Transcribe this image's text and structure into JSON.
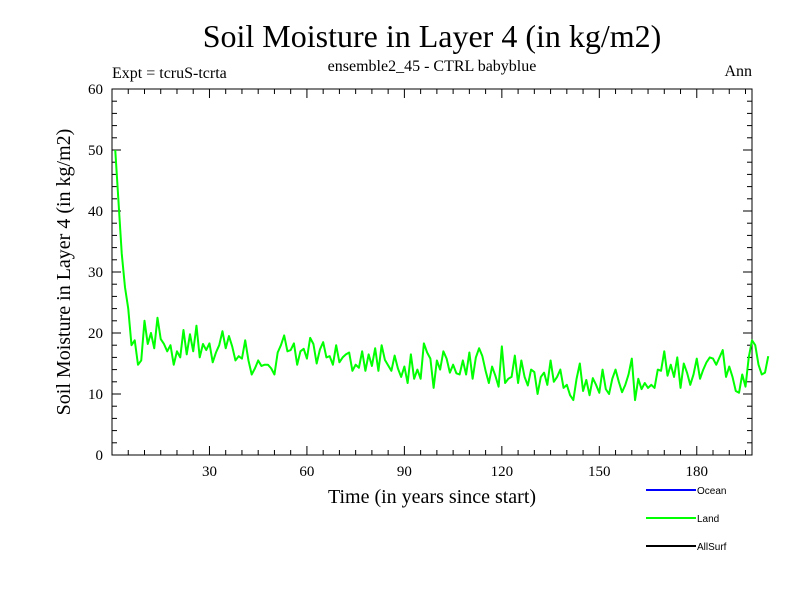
{
  "chart_data": {
    "type": "line",
    "title": "Soil Moisture in Layer 4 (in kg/m2)",
    "subtitle": "ensemble2_45 - CTRL babyblue",
    "left_note": "Expt = tcruS-tcrta",
    "right_note": "Ann",
    "xlabel": "Time (in years since start)",
    "ylabel": "Soil Moisture in Layer 4 (in kg/m2)",
    "xlim": [
      0,
      197
    ],
    "ylim": [
      0,
      60
    ],
    "x_ticks": [
      30,
      60,
      90,
      120,
      150,
      180
    ],
    "y_ticks": [
      0,
      10,
      20,
      30,
      40,
      50,
      60
    ],
    "x_start": 1,
    "series": [
      {
        "name": "Ocean",
        "color": "#0000ff",
        "values": []
      },
      {
        "name": "Land",
        "color": "#00ff00",
        "values": [
          50.0,
          41.5,
          33.0,
          27.5,
          24.0,
          18.0,
          18.8,
          14.8,
          15.5,
          22.0,
          18.2,
          20.0,
          17.5,
          22.5,
          19.0,
          18.2,
          17.0,
          18.0,
          14.8,
          17.0,
          16.0,
          20.5,
          16.5,
          19.8,
          17.0,
          21.2,
          16.0,
          18.2,
          17.2,
          18.3,
          15.2,
          16.8,
          18.0,
          20.3,
          17.5,
          19.5,
          17.8,
          15.5,
          16.2,
          15.8,
          18.8,
          15.5,
          13.2,
          14.2,
          15.5,
          14.6,
          14.8,
          14.8,
          14.2,
          13.2,
          16.8,
          18.0,
          19.6,
          17.0,
          17.2,
          18.3,
          14.8,
          17.0,
          17.4,
          15.8,
          19.2,
          18.2,
          15.0,
          17.3,
          18.5,
          16.0,
          16.2,
          14.8,
          18.0,
          15.2,
          16.0,
          16.5,
          16.8,
          13.8,
          14.8,
          14.3,
          17.0,
          13.8,
          16.5,
          14.6,
          17.5,
          13.8,
          18.0,
          15.6,
          14.7,
          13.8,
          16.3,
          14.2,
          12.8,
          14.5,
          11.8,
          16.5,
          12.5,
          14.0,
          12.5,
          18.3,
          16.8,
          15.8,
          11.0,
          15.5,
          14.0,
          17.0,
          15.8,
          13.5,
          14.8,
          13.4,
          13.2,
          15.5,
          13.2,
          16.8,
          12.5,
          16.0,
          17.5,
          16.2,
          13.8,
          11.8,
          14.5,
          13.0,
          11.2,
          17.8,
          11.8,
          12.5,
          12.8,
          16.3,
          11.8,
          15.5,
          12.8,
          11.4,
          14.0,
          13.6,
          10.0,
          12.8,
          13.5,
          11.5,
          15.5,
          12.0,
          12.8,
          14.0,
          11.0,
          11.5,
          9.8,
          9.0,
          12.5,
          15.0,
          10.5,
          12.3,
          9.8,
          12.6,
          11.5,
          10.2,
          14.0,
          10.8,
          10.0,
          12.5,
          14.0,
          12.0,
          10.3,
          11.5,
          13.2,
          15.8,
          9.0,
          12.5,
          10.8,
          11.8,
          11.0,
          11.5,
          11.0,
          14.0,
          13.8,
          17.0,
          13.0,
          14.8,
          12.8,
          16.0,
          11.0,
          15.0,
          13.5,
          11.5,
          13.2,
          15.8,
          12.5,
          14.0,
          15.2,
          16.0,
          15.8,
          14.8,
          16.0,
          17.2,
          12.8,
          14.5,
          12.8,
          10.5,
          10.2,
          13.2,
          11.2,
          16.0,
          18.8,
          18.0,
          14.8,
          13.2,
          13.5,
          16.2
        ]
      },
      {
        "name": "AllSurf",
        "color": "#000000",
        "values": []
      }
    ],
    "legend_position": "bottom-right",
    "grid": false
  }
}
